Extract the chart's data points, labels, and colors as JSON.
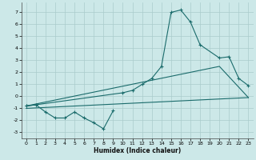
{
  "xlabel": "Humidex (Indice chaleur)",
  "xlim": [
    -0.5,
    23.5
  ],
  "ylim": [
    -3.5,
    7.8
  ],
  "xticks": [
    0,
    1,
    2,
    3,
    4,
    5,
    6,
    7,
    8,
    9,
    10,
    11,
    12,
    13,
    14,
    15,
    16,
    17,
    18,
    19,
    20,
    21,
    22,
    23
  ],
  "yticks": [
    -3,
    -2,
    -1,
    0,
    1,
    2,
    3,
    4,
    5,
    6,
    7
  ],
  "background_color": "#cce8e8",
  "grid_color": "#aacccc",
  "line_color": "#1a6b6b",
  "zigzag_x": [
    0,
    1,
    2,
    3,
    4,
    5,
    6,
    7,
    8,
    9
  ],
  "zigzag_y": [
    -0.8,
    -0.7,
    -1.3,
    -1.8,
    -1.8,
    -1.3,
    -1.8,
    -2.2,
    -2.7,
    -1.2
  ],
  "peak_x": [
    0,
    1,
    10,
    11,
    12,
    13,
    14,
    15,
    16,
    17,
    18,
    20,
    21,
    22,
    23
  ],
  "peak_y": [
    -0.8,
    -0.7,
    0.3,
    0.5,
    1.0,
    1.5,
    2.5,
    7.0,
    7.2,
    6.2,
    4.3,
    3.2,
    3.3,
    1.5,
    0.9
  ],
  "trend1_x": [
    0,
    20,
    23
  ],
  "trend1_y": [
    -0.8,
    2.5,
    -0.1
  ],
  "trend2_x": [
    0,
    23
  ],
  "trend2_y": [
    -1.0,
    -0.1
  ]
}
